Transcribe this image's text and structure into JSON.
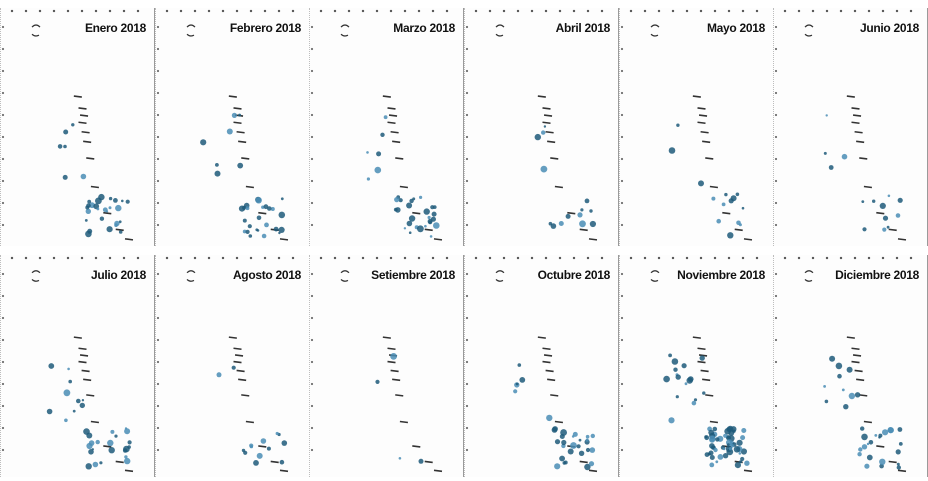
{
  "colors": {
    "hotspot": "#1e5a7a",
    "hotspot_light": "#4a8db5",
    "coast": "#333333",
    "border": "#9a9a9a"
  },
  "panels": [
    {
      "title": "Enero 2018",
      "hotspot_density": "medium"
    },
    {
      "title": "Febrero 2018",
      "hotspot_density": "medium"
    },
    {
      "title": "Marzo 2018",
      "hotspot_density": "medium"
    },
    {
      "title": "Abril 2018",
      "hotspot_density": "low"
    },
    {
      "title": "Mayo 2018",
      "hotspot_density": "low"
    },
    {
      "title": "Junio 2018",
      "hotspot_density": "low"
    },
    {
      "title": "Julio 2018",
      "hotspot_density": "medium"
    },
    {
      "title": "Agosto 2018",
      "hotspot_density": "low"
    },
    {
      "title": "Setiembre 2018",
      "hotspot_density": "very-low"
    },
    {
      "title": "Octubre 2018",
      "hotspot_density": "medium"
    },
    {
      "title": "Noviembre 2018",
      "hotspot_density": "high"
    },
    {
      "title": "Diciembre 2018",
      "hotspot_density": "medium"
    }
  ]
}
